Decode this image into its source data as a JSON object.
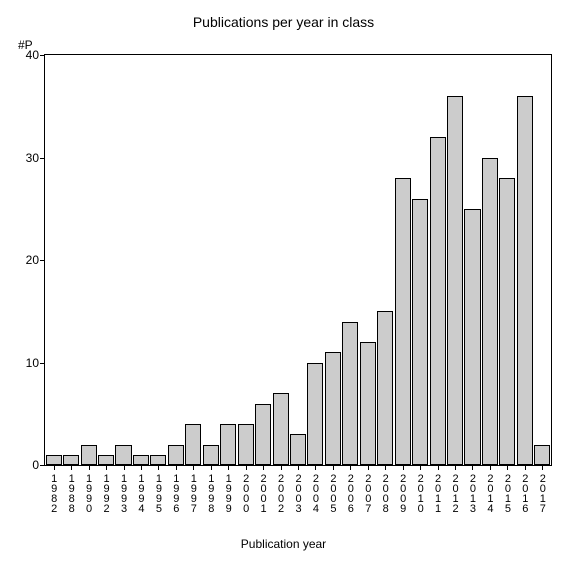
{
  "chart": {
    "type": "bar",
    "title": "Publications per year in class",
    "title_fontsize": 14,
    "y_axis_label": "#P",
    "x_axis_label": "Publication year",
    "label_fontsize": 12,
    "background_color": "#ffffff",
    "bar_fill_color": "#cccccc",
    "bar_border_color": "#000000",
    "axis_color": "#000000",
    "text_color": "#000000",
    "ylim": [
      0,
      40
    ],
    "ytick_step": 10,
    "yticks": [
      0,
      10,
      20,
      30,
      40
    ],
    "categories": [
      "1982",
      "1988",
      "1990",
      "1992",
      "1993",
      "1994",
      "1995",
      "1996",
      "1997",
      "1998",
      "1999",
      "2000",
      "2001",
      "2002",
      "2003",
      "2004",
      "2005",
      "2006",
      "2007",
      "2008",
      "2009",
      "2010",
      "2011",
      "2012",
      "2013",
      "2014",
      "2015",
      "2016",
      "2017"
    ],
    "values": [
      1,
      1,
      2,
      1,
      2,
      1,
      1,
      2,
      4,
      2,
      4,
      4,
      6,
      7,
      3,
      10,
      11,
      14,
      12,
      15,
      28,
      26,
      32,
      36,
      25,
      30,
      28,
      36,
      2
    ],
    "bar_width_ratio": 0.92,
    "tick_fontsize": 12,
    "x_tick_fontsize": 11
  }
}
